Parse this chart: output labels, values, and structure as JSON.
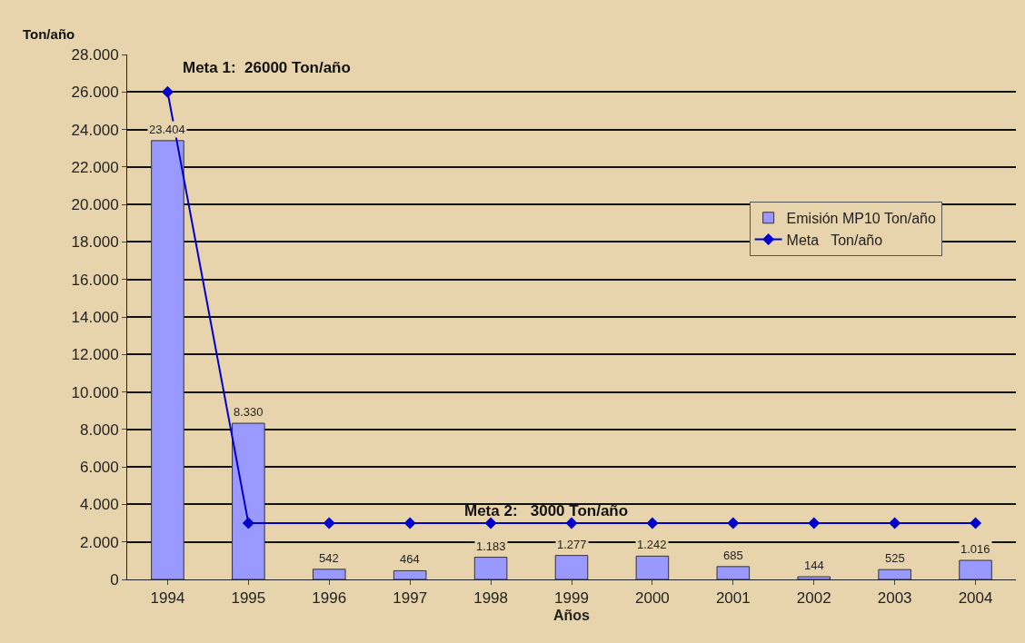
{
  "chart_data": {
    "type": "bar",
    "xlabel": "Años",
    "ylabel": "Ton/año",
    "categories": [
      "1994",
      "1995",
      "1996",
      "1997",
      "1998",
      "1999",
      "2000",
      "2001",
      "2002",
      "2003",
      "2004"
    ],
    "series": [
      {
        "name": "Emisión MP10 Ton/año",
        "color": "#9999ff",
        "values": [
          23404,
          8330,
          542,
          464,
          1183,
          1277,
          1242,
          685,
          144,
          525,
          1016
        ],
        "value_labels": [
          "23.404",
          "8.330",
          "542",
          "464",
          "1.183",
          "1.277",
          "1.242",
          "685",
          "144",
          "525",
          "1.016"
        ]
      },
      {
        "name": "Meta   Ton/año",
        "type": "line",
        "color": "#0000cc",
        "marker": "diamond",
        "line_style": "solid",
        "values": [
          26000,
          3000,
          3000,
          3000,
          3000,
          3000,
          3000,
          3000,
          3000,
          3000,
          3000
        ]
      }
    ],
    "ylim": [
      0,
      28000
    ],
    "yticks": [
      {
        "value": 0,
        "label": "0"
      },
      {
        "value": 2000,
        "label": "2.000"
      },
      {
        "value": 4000,
        "label": "4.000"
      },
      {
        "value": 6000,
        "label": "6.000"
      },
      {
        "value": 8000,
        "label": "8.000"
      },
      {
        "value": 10000,
        "label": "10.000"
      },
      {
        "value": 12000,
        "label": "12.000"
      },
      {
        "value": 14000,
        "label": "14.000"
      },
      {
        "value": 16000,
        "label": "16.000"
      },
      {
        "value": 18000,
        "label": "18.000"
      },
      {
        "value": 20000,
        "label": "20.000"
      },
      {
        "value": 22000,
        "label": "22.000"
      },
      {
        "value": 24000,
        "label": "24.000"
      },
      {
        "value": 26000,
        "label": "26.000"
      },
      {
        "value": 28000,
        "label": "28.000"
      }
    ],
    "grid": "y",
    "legend": "right",
    "annotations": [
      "Meta 1:  26000 Ton/año",
      {
        "text": "Meta 2:   3000 Ton/año",
        "x": "1998",
        "y": 3000
      }
    ]
  }
}
